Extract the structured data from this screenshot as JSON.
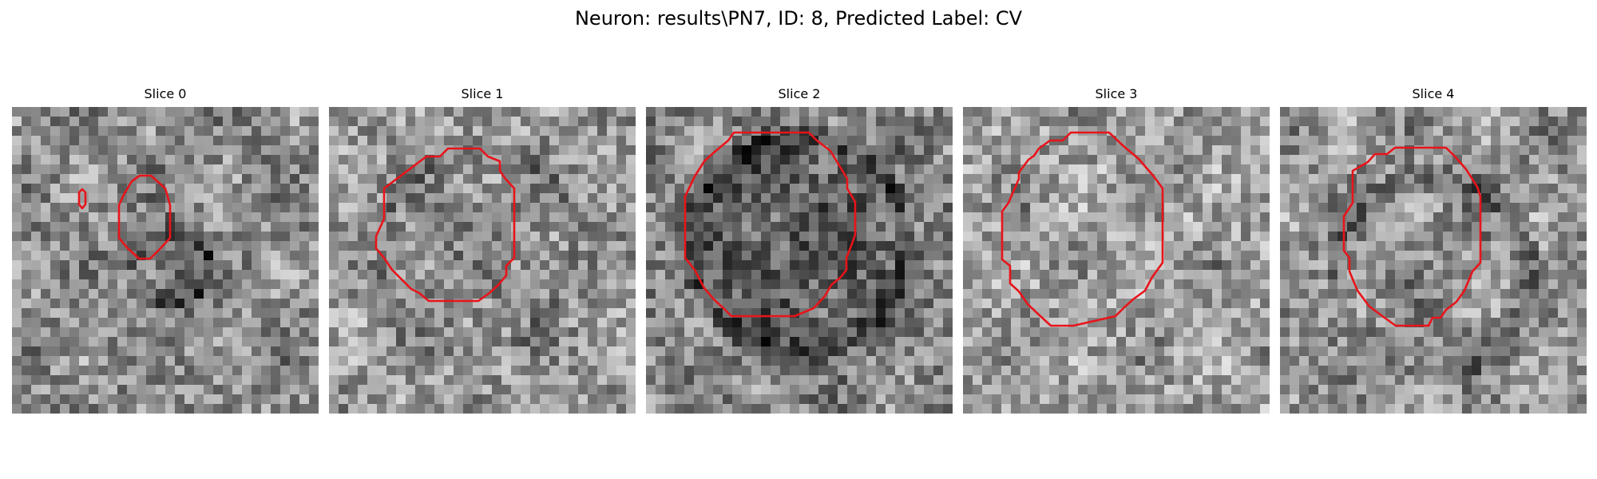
{
  "figure": {
    "title": "Neuron: results\\PN7, ID: 8, Predicted Label: CV"
  },
  "panels": [
    {
      "title": "Slice 0"
    },
    {
      "title": "Slice 1"
    },
    {
      "title": "Slice 2"
    },
    {
      "title": "Slice 3"
    },
    {
      "title": "Slice 4"
    }
  ],
  "colors": {
    "contour": "#e8141a",
    "background": "#ffffff"
  }
}
